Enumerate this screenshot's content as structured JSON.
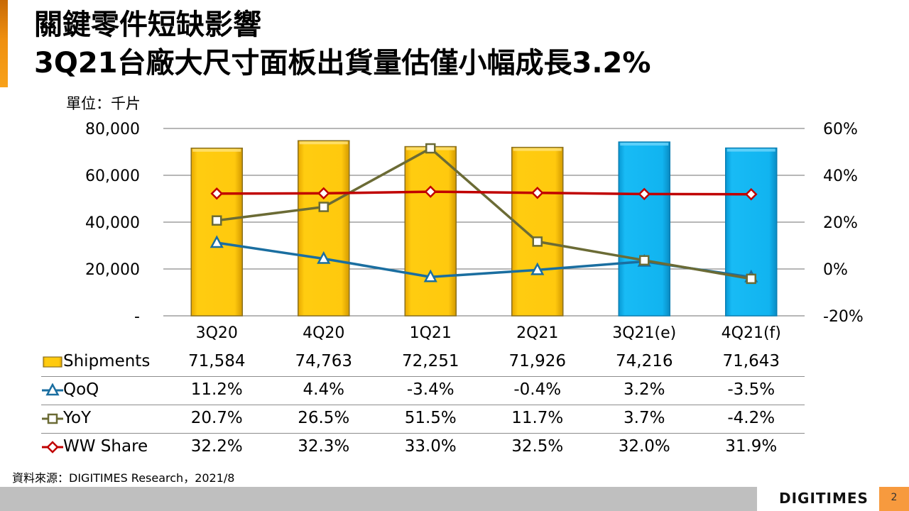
{
  "header": {
    "title_line1": "關鍵零件短缺影響",
    "title_line2": "3Q21台廠大尺寸面板出貨量估僅小幅成長3.2%",
    "unit_label": "單位：千片"
  },
  "chart_data": {
    "type": "bar+line",
    "title": "3Q21台廠大尺寸面板出貨量估僅小幅成長3.2%",
    "unit": "單位：千片",
    "categories": [
      "3Q20",
      "4Q20",
      "1Q21",
      "2Q21",
      "3Q21(e)",
      "4Q21(f)"
    ],
    "left_axis": {
      "range": [
        0,
        80000
      ],
      "ticks": [
        0,
        20000,
        40000,
        60000,
        80000
      ],
      "tick_labels": [
        "-",
        "20,000",
        "40,000",
        "60,000",
        "80,000"
      ]
    },
    "right_axis": {
      "range": [
        -20,
        60
      ],
      "ticks": [
        -20,
        0,
        20,
        40,
        60
      ],
      "tick_labels": [
        "-20%",
        "0%",
        "20%",
        "40%",
        "60%"
      ]
    },
    "grid": true,
    "series": [
      {
        "name": "Shipments",
        "type": "bar",
        "axis": "left",
        "values": [
          71584,
          74763,
          72251,
          71926,
          74216,
          71643
        ],
        "display": [
          "71,584",
          "74,763",
          "72,251",
          "71,926",
          "74,216",
          "71,643"
        ],
        "colors": [
          "#ffc90e",
          "#ffc90e",
          "#ffc90e",
          "#ffc90e",
          "#11b4f0",
          "#11b4f0"
        ],
        "marker": "rect"
      },
      {
        "name": "QoQ",
        "type": "line",
        "axis": "right",
        "values": [
          11.2,
          4.4,
          -3.4,
          -0.4,
          3.2,
          -3.5
        ],
        "display": [
          "11.2%",
          "4.4%",
          "-3.4%",
          "-0.4%",
          "3.2%",
          "-3.5%"
        ],
        "color": "#1a6ea0",
        "marker": "triangle"
      },
      {
        "name": "YoY",
        "type": "line",
        "axis": "right",
        "values": [
          20.7,
          26.5,
          51.5,
          11.7,
          3.7,
          -4.2
        ],
        "display": [
          "20.7%",
          "26.5%",
          "51.5%",
          "11.7%",
          "3.7%",
          "-4.2%"
        ],
        "color": "#6b6b35",
        "marker": "square"
      },
      {
        "name": "WW Share",
        "type": "line",
        "axis": "right",
        "values": [
          32.2,
          32.3,
          33.0,
          32.5,
          32.0,
          31.9
        ],
        "display": [
          "32.2%",
          "32.3%",
          "33.0%",
          "32.5%",
          "32.0%",
          "31.9%"
        ],
        "color": "#c00000",
        "marker": "diamond"
      }
    ],
    "legend": "data-table-below"
  },
  "footer": {
    "source": "資料來源：DIGITIMES Research，2021/8",
    "logo": "DIGITIMES",
    "page_number": "2"
  }
}
